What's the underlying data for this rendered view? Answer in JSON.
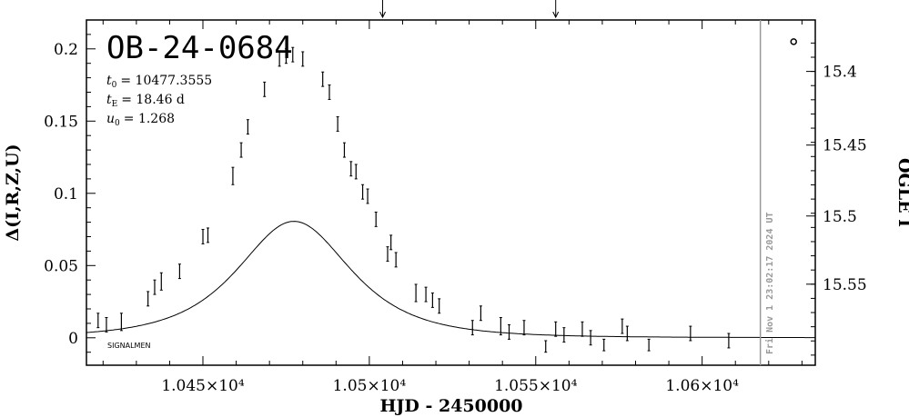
{
  "chart_data": {
    "type": "scatter",
    "title": "OB-24-0684",
    "xlabel": "HJD - 2450000",
    "ylabel_left": "Δ(I,R,Z,U)",
    "ylabel_right": "OGLE I",
    "xlim": [
      10415,
      10634
    ],
    "ylim": [
      -0.019,
      0.22
    ],
    "x_ticks": [
      {
        "value": 10450,
        "label": "1.045×10⁴"
      },
      {
        "value": 10500,
        "label": "1.05×10⁴"
      },
      {
        "value": 10550,
        "label": "1.055×10⁴"
      },
      {
        "value": 10600,
        "label": "1.06×10⁴"
      }
    ],
    "y_ticks_left": [
      {
        "value": 0,
        "label": "0"
      },
      {
        "value": 0.05,
        "label": "0.05"
      },
      {
        "value": 0.1,
        "label": "0.1"
      },
      {
        "value": 0.15,
        "label": "0.15"
      },
      {
        "value": 0.2,
        "label": "0.2"
      }
    ],
    "y_ticks_right": [
      {
        "value": 0.1844,
        "label": "15.4"
      },
      {
        "value": 0.1334,
        "label": "15.45"
      },
      {
        "value": 0.0843,
        "label": "15.5"
      },
      {
        "value": 0.0371,
        "label": "15.55"
      }
    ],
    "params": [
      {
        "sym": "t",
        "sub": "0",
        "value": "= 10477.3555"
      },
      {
        "sym": "t",
        "sub": "E",
        "value": "= 18.46 d"
      },
      {
        "sym": "u",
        "sub": "0",
        "value": "= 1.268"
      }
    ],
    "model": {
      "t0": 10477.3555,
      "tE": 18.46,
      "u0": 1.268
    },
    "corner_label": "SIGNALMEN",
    "timestamp": "Fri Nov  1 23:02:17 2024 UT",
    "now_line_x": 10617.5,
    "top_arrows_x": [
      10504,
      10556
    ],
    "circle_marker": {
      "x": 10627.5,
      "y": 0.205
    },
    "points": [
      {
        "x": 10418.5,
        "y": 0.012,
        "e": 0.005
      },
      {
        "x": 10421.0,
        "y": 0.009,
        "e": 0.005
      },
      {
        "x": 10425.5,
        "y": 0.011,
        "e": 0.006
      },
      {
        "x": 10433.5,
        "y": 0.027,
        "e": 0.005
      },
      {
        "x": 10435.5,
        "y": 0.035,
        "e": 0.005
      },
      {
        "x": 10437.5,
        "y": 0.039,
        "e": 0.006
      },
      {
        "x": 10443.0,
        "y": 0.046,
        "e": 0.005
      },
      {
        "x": 10450.0,
        "y": 0.07,
        "e": 0.005
      },
      {
        "x": 10451.5,
        "y": 0.071,
        "e": 0.005
      },
      {
        "x": 10459.0,
        "y": 0.112,
        "e": 0.006
      },
      {
        "x": 10461.5,
        "y": 0.13,
        "e": 0.005
      },
      {
        "x": 10463.5,
        "y": 0.146,
        "e": 0.005
      },
      {
        "x": 10468.5,
        "y": 0.172,
        "e": 0.005
      },
      {
        "x": 10473.0,
        "y": 0.193,
        "e": 0.005
      },
      {
        "x": 10475.0,
        "y": 0.195,
        "e": 0.005
      },
      {
        "x": 10477.0,
        "y": 0.196,
        "e": 0.005
      },
      {
        "x": 10480.0,
        "y": 0.193,
        "e": 0.005
      },
      {
        "x": 10486.0,
        "y": 0.179,
        "e": 0.005
      },
      {
        "x": 10488.0,
        "y": 0.17,
        "e": 0.005
      },
      {
        "x": 10490.5,
        "y": 0.148,
        "e": 0.005
      },
      {
        "x": 10492.5,
        "y": 0.13,
        "e": 0.005
      },
      {
        "x": 10494.5,
        "y": 0.117,
        "e": 0.005
      },
      {
        "x": 10496.0,
        "y": 0.115,
        "e": 0.005
      },
      {
        "x": 10498.0,
        "y": 0.101,
        "e": 0.005
      },
      {
        "x": 10499.5,
        "y": 0.098,
        "e": 0.005
      },
      {
        "x": 10502.0,
        "y": 0.082,
        "e": 0.005
      },
      {
        "x": 10505.5,
        "y": 0.058,
        "e": 0.005
      },
      {
        "x": 10506.5,
        "y": 0.066,
        "e": 0.005
      },
      {
        "x": 10508.0,
        "y": 0.054,
        "e": 0.005
      },
      {
        "x": 10514.0,
        "y": 0.031,
        "e": 0.006
      },
      {
        "x": 10517.0,
        "y": 0.03,
        "e": 0.005
      },
      {
        "x": 10519.0,
        "y": 0.026,
        "e": 0.005
      },
      {
        "x": 10521.0,
        "y": 0.022,
        "e": 0.005
      },
      {
        "x": 10531.0,
        "y": 0.007,
        "e": 0.005
      },
      {
        "x": 10533.5,
        "y": 0.017,
        "e": 0.005
      },
      {
        "x": 10539.5,
        "y": 0.008,
        "e": 0.006
      },
      {
        "x": 10542.0,
        "y": 0.004,
        "e": 0.005
      },
      {
        "x": 10546.5,
        "y": 0.007,
        "e": 0.005
      },
      {
        "x": 10553.0,
        "y": -0.006,
        "e": 0.004
      },
      {
        "x": 10556.0,
        "y": 0.006,
        "e": 0.005
      },
      {
        "x": 10558.5,
        "y": 0.002,
        "e": 0.005
      },
      {
        "x": 10564.0,
        "y": 0.006,
        "e": 0.005
      },
      {
        "x": 10566.5,
        "y": 0.0,
        "e": 0.005
      },
      {
        "x": 10570.5,
        "y": -0.005,
        "e": 0.004
      },
      {
        "x": 10576.0,
        "y": 0.008,
        "e": 0.005
      },
      {
        "x": 10577.5,
        "y": 0.003,
        "e": 0.005
      },
      {
        "x": 10584.0,
        "y": -0.005,
        "e": 0.004
      },
      {
        "x": 10596.5,
        "y": 0.003,
        "e": 0.005
      },
      {
        "x": 10608.0,
        "y": -0.002,
        "e": 0.005
      }
    ]
  }
}
